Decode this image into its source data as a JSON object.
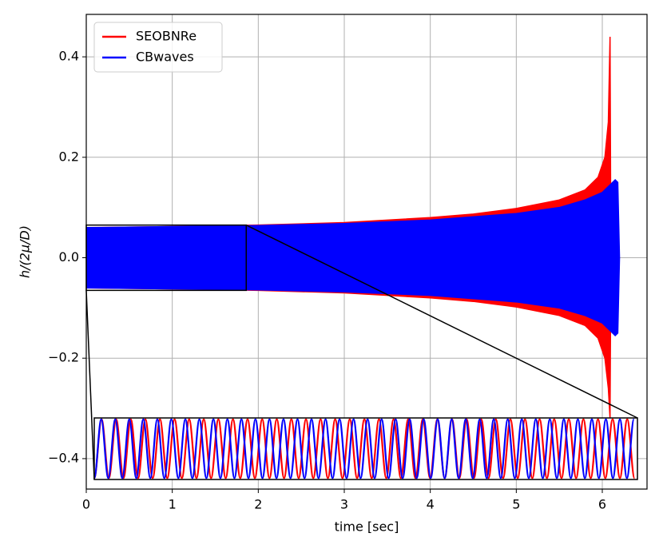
{
  "chart_data": {
    "type": "band",
    "xlabel": "time [sec]",
    "ylabel": "h/(2μ/D)",
    "xlim": [
      0,
      6.52
    ],
    "ylim": [
      -0.4606,
      0.4845
    ],
    "xticks": [
      0,
      1,
      2,
      3,
      4,
      5,
      6
    ],
    "yticks": [
      {
        "value": -0.4,
        "label": "−0.4"
      },
      {
        "value": -0.2,
        "label": "−0.2"
      },
      {
        "value": 0,
        "label": "0.0"
      },
      0.2,
      0.4
    ],
    "grid": true,
    "legend": "upper left",
    "series": [
      {
        "name": "SEOBNRe",
        "color": "#ff0000",
        "x": [
          0,
          1,
          2,
          3,
          4,
          4.5,
          5,
          5.5,
          5.8,
          5.95,
          6.03,
          6.07,
          6.09,
          6.1
        ],
        "upper": [
          0.06,
          0.062,
          0.065,
          0.07,
          0.08,
          0.087,
          0.098,
          0.115,
          0.135,
          0.16,
          0.2,
          0.27,
          0.44,
          0
        ],
        "lower": [
          -0.06,
          -0.062,
          -0.065,
          -0.07,
          -0.08,
          -0.087,
          -0.098,
          -0.115,
          -0.135,
          -0.16,
          -0.2,
          -0.26,
          -0.32,
          0
        ]
      },
      {
        "name": "CBwaves",
        "color": "#0000ff",
        "x": [
          0,
          1,
          2,
          3,
          4,
          5,
          5.5,
          5.8,
          6,
          6.15,
          6.18,
          6.2
        ],
        "upper": [
          0.06,
          0.062,
          0.064,
          0.068,
          0.075,
          0.088,
          0.1,
          0.115,
          0.13,
          0.155,
          0.15,
          0
        ],
        "lower": [
          -0.06,
          -0.062,
          -0.064,
          -0.068,
          -0.075,
          -0.088,
          -0.1,
          -0.115,
          -0.13,
          -0.155,
          -0.15,
          0
        ]
      }
    ],
    "inset": {
      "xlim": [
        0,
        1.86
      ],
      "ylim": [
        -0.065,
        0.065
      ],
      "series": [
        {
          "name": "SEOBNRe",
          "color": "#ff0000",
          "x": [
            0,
            0.025,
            0.05,
            0.075,
            0.1,
            0.125,
            0.15,
            0.175,
            0.2,
            0.225,
            0.25,
            0.275,
            0.3,
            0.325,
            0.35,
            0.375,
            0.4,
            0.425,
            0.45,
            0.475,
            0.5,
            0.525,
            0.55,
            0.575,
            0.6,
            0.625,
            0.65,
            0.675,
            0.7,
            0.725,
            0.75,
            0.775,
            0.8,
            0.825,
            0.85,
            0.875,
            0.9,
            0.925,
            0.95,
            0.975,
            1,
            1.025,
            1.05,
            1.075,
            1.1,
            1.125,
            1.15,
            1.175,
            1.2,
            1.225,
            1.25,
            1.275,
            1.3,
            1.325,
            1.35,
            1.375,
            1.4,
            1.425,
            1.45,
            1.475,
            1.5,
            1.525,
            1.55,
            1.575,
            1.6,
            1.625,
            1.65,
            1.675,
            1.7,
            1.725,
            1.75,
            1.775,
            1.8,
            1.825,
            1.85
          ],
          "values": [
            -0.062,
            0.062,
            -0.062,
            0.062,
            -0.062,
            0.062,
            -0.062,
            0.062,
            -0.062,
            0.062,
            -0.062,
            0.062,
            -0.062,
            0.062,
            -0.062,
            0.062,
            -0.062,
            0.062,
            -0.062,
            0.062,
            -0.062,
            0.062,
            -0.062,
            0.062,
            -0.062,
            0.062,
            -0.062,
            0.062,
            -0.062,
            0.062,
            -0.062,
            0.062,
            -0.062,
            0.062,
            -0.062,
            0.062,
            -0.062,
            0.062,
            -0.062,
            0.062,
            -0.062,
            0.062,
            -0.062,
            0.062,
            -0.062,
            0.062,
            -0.062,
            0.062,
            -0.062,
            0.062,
            -0.062,
            0.062,
            -0.062,
            0.062,
            -0.062,
            0.062,
            -0.062,
            0.062,
            -0.062,
            0.062,
            -0.062,
            0.062,
            -0.062,
            0.062,
            -0.062,
            0.062,
            -0.062,
            0.062,
            -0.062,
            0.062,
            -0.062,
            0.062,
            -0.062,
            0.062,
            -0.062
          ]
        },
        {
          "name": "CBwaves",
          "color": "#0000ff",
          "x": [
            0,
            0.024,
            0.048,
            0.072,
            0.096,
            0.12,
            0.144,
            0.168,
            0.192,
            0.216,
            0.24,
            0.264,
            0.288,
            0.312,
            0.336,
            0.36,
            0.384,
            0.408,
            0.432,
            0.456,
            0.48,
            0.504,
            0.528,
            0.552,
            0.576,
            0.6,
            0.624,
            0.648,
            0.672,
            0.696,
            0.72,
            0.744,
            0.768,
            0.792,
            0.816,
            0.84,
            0.864,
            0.888,
            0.912,
            0.936,
            0.96,
            0.984,
            1.008,
            1.032,
            1.056,
            1.08,
            1.104,
            1.128,
            1.152,
            1.176,
            1.2,
            1.224,
            1.248,
            1.272,
            1.296,
            1.32,
            1.344,
            1.368,
            1.392,
            1.416,
            1.44,
            1.464,
            1.488,
            1.512,
            1.536,
            1.56,
            1.584,
            1.608,
            1.632,
            1.656,
            1.68,
            1.704,
            1.728,
            1.752,
            1.776,
            1.8,
            1.824,
            1.848
          ],
          "values": [
            -0.062,
            0.062,
            -0.062,
            0.062,
            -0.062,
            0.062,
            -0.062,
            0.062,
            -0.062,
            0.062,
            -0.062,
            0.062,
            -0.062,
            0.062,
            -0.062,
            0.062,
            -0.062,
            0.062,
            -0.062,
            0.062,
            -0.062,
            0.062,
            -0.062,
            0.062,
            -0.062,
            0.062,
            -0.062,
            0.062,
            -0.062,
            0.062,
            -0.062,
            0.062,
            -0.062,
            0.062,
            -0.062,
            0.062,
            -0.062,
            0.062,
            -0.062,
            0.062,
            -0.062,
            0.062,
            -0.062,
            0.062,
            -0.062,
            0.062,
            -0.062,
            0.062,
            -0.062,
            0.062,
            -0.062,
            0.062,
            -0.062,
            0.062,
            -0.062,
            0.062,
            -0.062,
            0.062,
            -0.062,
            0.062,
            -0.062,
            0.062,
            -0.062,
            0.062,
            -0.062,
            0.062,
            -0.062,
            0.062,
            -0.062,
            0.062,
            -0.062,
            0.062,
            -0.062,
            0.062,
            -0.062,
            0.062,
            -0.062,
            0.062
          ]
        }
      ]
    }
  }
}
